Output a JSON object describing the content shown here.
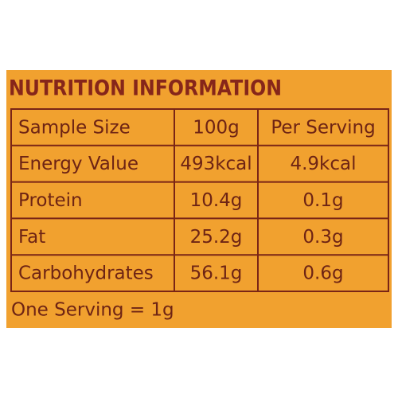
{
  "title": "NUTRITION INFORMATION",
  "table": {
    "header": [
      "Sample Size",
      "100g",
      "Per Serving"
    ],
    "rows": [
      [
        "Energy Value",
        "493kcal",
        "4.9kcal"
      ],
      [
        "Protein",
        "10.4g",
        "0.1g"
      ],
      [
        "Fat",
        "25.2g",
        "0.3g"
      ],
      [
        "Carbohydrates",
        "56.1g",
        "0.6g"
      ]
    ]
  },
  "footer": "One Serving = 1g"
}
